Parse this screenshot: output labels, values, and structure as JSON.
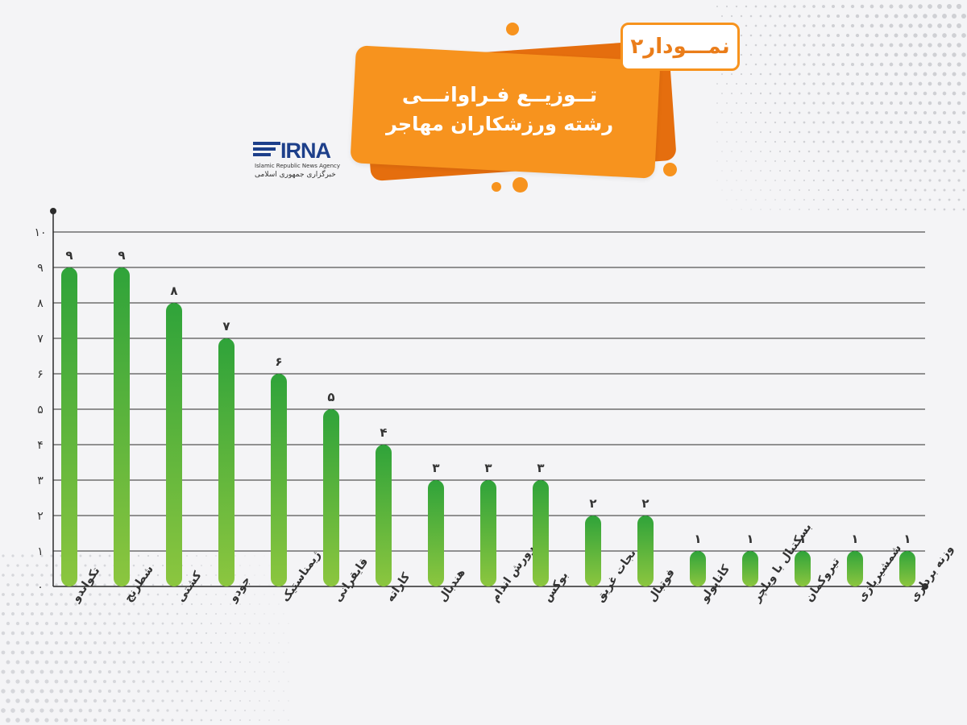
{
  "header": {
    "chart_number": "نمـــودار۲",
    "title_line1": "تــوزیــع فـراوانـــی",
    "title_line2": "رشته ورزشکاران مهاجر"
  },
  "logo": {
    "word": "IRNA",
    "sub_en": "Islamic Republic News Agency",
    "sub_fa": "خبرگزاری جمهوری اسلامی"
  },
  "colors": {
    "accent": "#f7931e",
    "accent_dark": "#e56e0e",
    "bar_top": "#2fa33a",
    "bar_bottom": "#8cc63f",
    "axis": "#2b2b2b",
    "brand": "#1d3f8a"
  },
  "chart_data": {
    "type": "bar",
    "categories": [
      "تکواندو",
      "شطرنج",
      "کشتی",
      "جودو",
      "ژیمناستیک",
      "قایقرانی",
      "کاراته",
      "هندبال",
      "پرورش اندام",
      "بوکس",
      "نجات غریق",
      "فوتبال",
      "کاناپولو",
      "بسکتبال با ویلچر",
      "تیروکمان",
      "شمشیربازی",
      "وزنه برداری"
    ],
    "values": [
      9,
      9,
      8,
      7,
      6,
      5,
      4,
      3,
      3,
      3,
      2,
      2,
      1,
      1,
      1,
      1,
      1
    ],
    "value_labels": [
      "۹",
      "۹",
      "۸",
      "۷",
      "۶",
      "۵",
      "۴",
      "۳",
      "۳",
      "۳",
      "۲",
      "۲",
      "۱",
      "۱",
      "۱",
      "۱",
      "۱"
    ],
    "yticks": [
      0,
      1,
      2,
      3,
      4,
      5,
      6,
      7,
      8,
      9,
      10
    ],
    "ytick_labels": [
      "۰",
      "۱",
      "۲",
      "۳",
      "۴",
      "۵",
      "۶",
      "۷",
      "۸",
      "۹",
      "۱۰"
    ],
    "ylim": [
      0,
      10
    ],
    "grid": true,
    "legend": "none"
  }
}
